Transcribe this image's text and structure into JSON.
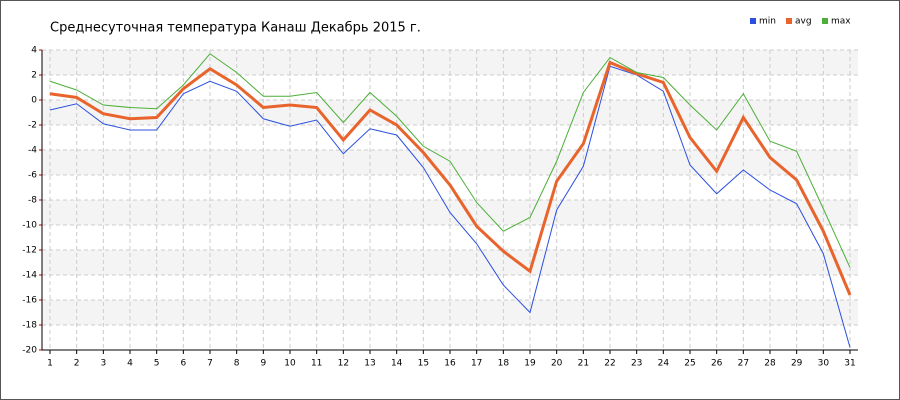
{
  "chart_data": {
    "type": "line",
    "title": "Среднесуточная температура Канаш  Декабрь 2015 г.",
    "x": [
      1,
      2,
      3,
      4,
      5,
      6,
      7,
      8,
      9,
      10,
      11,
      12,
      13,
      14,
      15,
      16,
      17,
      18,
      19,
      20,
      21,
      22,
      23,
      24,
      25,
      26,
      27,
      28,
      29,
      30,
      31
    ],
    "series": [
      {
        "name": "min",
        "color": "#2b4fe0",
        "values": [
          -0.8,
          -0.3,
          -1.9,
          -2.4,
          -2.4,
          0.5,
          1.5,
          0.7,
          -1.5,
          -2.1,
          -1.6,
          -4.3,
          -2.3,
          -2.8,
          -5.4,
          -9,
          -11.5,
          -14.8,
          -17,
          -8.8,
          -5.3,
          2.7,
          2,
          0.7,
          -5.2,
          -7.5,
          -5.6,
          -7.2,
          -8.3,
          -12.3,
          -19.8
        ]
      },
      {
        "name": "avg",
        "color": "#e8642c",
        "values": [
          0.5,
          0.2,
          -1.1,
          -1.5,
          -1.4,
          0.9,
          2.5,
          1.2,
          -0.6,
          -0.4,
          -0.6,
          -3.2,
          -0.8,
          -2,
          -4.2,
          -6.8,
          -10.1,
          -12.1,
          -13.7,
          -6.5,
          -3.5,
          3,
          2.1,
          1.4,
          -3,
          -5.7,
          -1.4,
          -4.6,
          -6.4,
          -10.5,
          -15.6
        ]
      },
      {
        "name": "max",
        "color": "#4caf37",
        "values": [
          1.5,
          0.8,
          -0.4,
          -0.6,
          -0.7,
          1.2,
          3.7,
          2.2,
          0.3,
          0.3,
          0.6,
          -1.8,
          0.6,
          -1.3,
          -3.7,
          -4.9,
          -8.2,
          -10.5,
          -9.4,
          -4.9,
          0.6,
          3.4,
          2.2,
          1.8,
          -0.4,
          -2.4,
          0.5,
          -3.3,
          -4.1,
          -8.7,
          -13.4
        ]
      }
    ],
    "xlim": [
      0.7,
      31.3
    ],
    "xticks": [
      1,
      2,
      3,
      4,
      5,
      6,
      7,
      8,
      9,
      10,
      11,
      12,
      13,
      14,
      15,
      16,
      17,
      18,
      19,
      20,
      21,
      22,
      23,
      24,
      25,
      26,
      27,
      28,
      29,
      30,
      31
    ],
    "ylim": [
      -20,
      4
    ],
    "yticks": [
      -20,
      -18,
      -16,
      -14,
      -12,
      -10,
      -8,
      -6,
      -4,
      -2,
      0,
      2,
      4
    ],
    "grid": true,
    "legend": "top-right"
  }
}
